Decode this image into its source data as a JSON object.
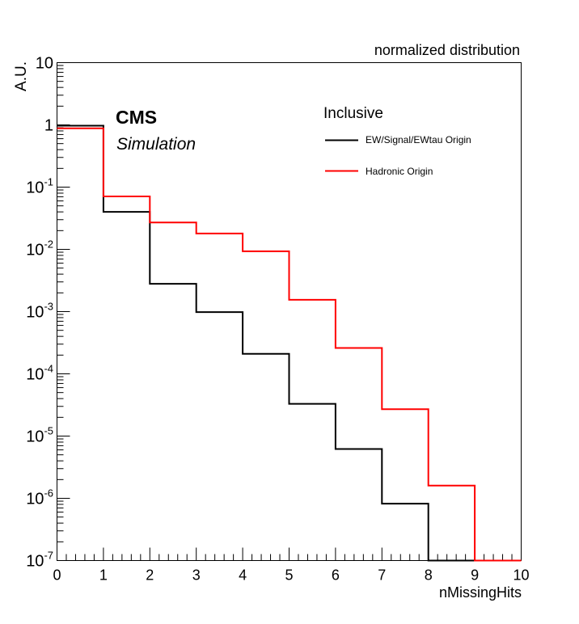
{
  "chart_data": {
    "type": "step-histogram",
    "title": "normalized distribution",
    "xlabel": "nMissingHits",
    "ylabel": "A.U.",
    "xlim": [
      0,
      10
    ],
    "ylim": [
      1e-07,
      10
    ],
    "yscale": "log",
    "grid": false,
    "x_ticks": [
      "0",
      "1",
      "2",
      "3",
      "4",
      "5",
      "6",
      "7",
      "8",
      "9",
      "10"
    ],
    "y_ticks": [
      {
        "base": "10",
        "exp": "-7",
        "value": 1e-07
      },
      {
        "base": "10",
        "exp": "-6",
        "value": 1e-06
      },
      {
        "base": "10",
        "exp": "-5",
        "value": 1e-05
      },
      {
        "base": "10",
        "exp": "-4",
        "value": 0.0001
      },
      {
        "base": "10",
        "exp": "-3",
        "value": 0.001
      },
      {
        "base": "10",
        "exp": "-2",
        "value": 0.01
      },
      {
        "base": "10",
        "exp": "-1",
        "value": 0.1
      },
      {
        "base": "1",
        "exp": "",
        "value": 1
      },
      {
        "base": "10",
        "exp": "",
        "value": 10
      }
    ],
    "bin_edges": [
      0,
      1,
      2,
      3,
      4,
      5,
      6,
      7,
      8,
      9,
      10
    ],
    "series": [
      {
        "name": "EW/Signal/EWtau Origin",
        "color": "#000000",
        "values": [
          0.97,
          0.04,
          0.0028,
          0.00098,
          0.00021,
          3.3e-05,
          6.2e-06,
          8.2e-07,
          1e-07,
          1e-07
        ]
      },
      {
        "name": "Hadronic Origin",
        "color": "#ff0000",
        "values": [
          0.88,
          0.071,
          0.027,
          0.018,
          0.0093,
          0.00155,
          0.00026,
          2.7e-05,
          1.6e-06,
          1e-07
        ]
      }
    ],
    "legend": {
      "header": "Inclusive",
      "placement": "top-right"
    },
    "annotations": {
      "experiment": "CMS",
      "status": "Simulation"
    }
  }
}
